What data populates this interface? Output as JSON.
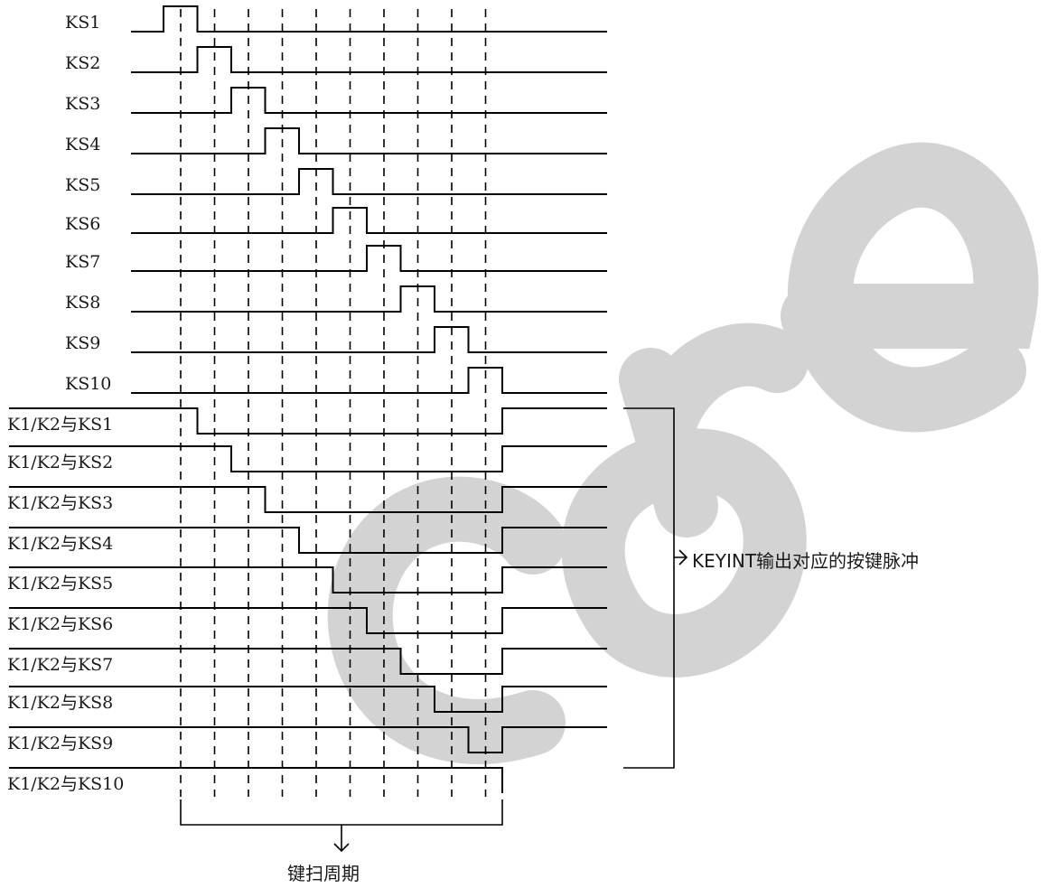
{
  "watermark": {
    "text": "core",
    "color": "#d0d0d0"
  },
  "ks_labels": [
    "KS1",
    "KS2",
    "KS3",
    "KS4",
    "KS5",
    "KS6",
    "KS7",
    "KS8",
    "KS9",
    "KS10"
  ],
  "k_labels": [
    "K1/K2与KS1",
    "K1/K2与KS2",
    "K1/K2与KS3",
    "K1/K2与KS4",
    "K1/K2与KS5",
    "K1/K2与KS6",
    "K1/K2与KS7",
    "K1/K2与KS8",
    "K1/K2与KS9",
    "K1/K2与KS10"
  ],
  "annotations": {
    "keyint": "KEYINT输出对应的按键脉冲",
    "scan_period": "键扫周期"
  }
}
